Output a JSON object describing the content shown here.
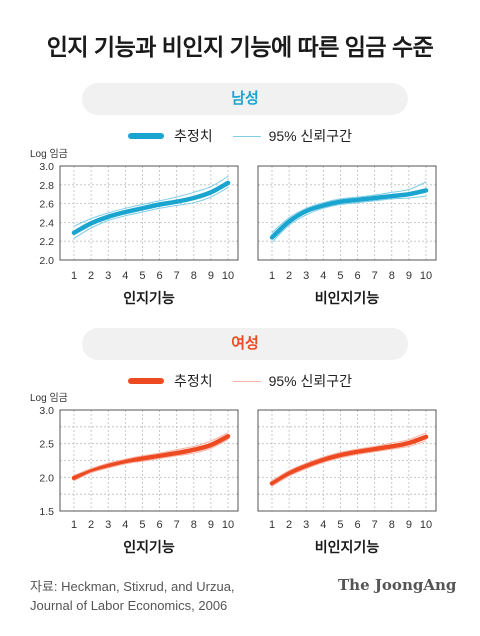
{
  "title": "인지 기능과 비인지 기능에 따른 임금 수준",
  "sections": {
    "male": {
      "label": "남성",
      "color": "#1aa5d0",
      "ci_color": "#7fcde6"
    },
    "female": {
      "label": "여성",
      "color": "#ee4a22",
      "ci_color": "#f6b3a4"
    }
  },
  "legend": {
    "estimate": "추정치",
    "ci": "95% 신뢰구간"
  },
  "y_axis_label": "Log 임금",
  "source": {
    "line1": "자료: Heckman, Stixrud, and Urzua,",
    "line2": "Journal of Labor Economics, 2006"
  },
  "logo": "The JoongAng",
  "chart_data": [
    {
      "type": "line",
      "group": "남성",
      "panel": "인지기능",
      "xlabel": "인지기능",
      "ylabel": "Log 임금",
      "x": [
        1,
        2,
        3,
        4,
        5,
        6,
        7,
        8,
        9,
        10
      ],
      "ylim": [
        2.0,
        3.0
      ],
      "yticks": [
        "2.0",
        "2.2",
        "2.4",
        "2.6",
        "2.8",
        "3.0"
      ],
      "series": [
        {
          "name": "추정치",
          "values": [
            2.29,
            2.39,
            2.46,
            2.51,
            2.55,
            2.59,
            2.62,
            2.66,
            2.72,
            2.82
          ]
        },
        {
          "name": "95% 신뢰구간",
          "role": "upper",
          "values": [
            2.36,
            2.44,
            2.5,
            2.55,
            2.59,
            2.63,
            2.67,
            2.72,
            2.78,
            2.89
          ]
        },
        {
          "name": "95% 신뢰구간",
          "role": "lower",
          "values": [
            2.23,
            2.34,
            2.42,
            2.47,
            2.51,
            2.55,
            2.58,
            2.61,
            2.67,
            2.77
          ]
        }
      ],
      "grid": true
    },
    {
      "type": "line",
      "group": "남성",
      "panel": "비인지기능",
      "xlabel": "비인지기능",
      "ylabel": "Log 임금",
      "x": [
        1,
        2,
        3,
        4,
        5,
        6,
        7,
        8,
        9,
        10
      ],
      "ylim": [
        2.0,
        3.0
      ],
      "series": [
        {
          "name": "추정치",
          "values": [
            2.24,
            2.41,
            2.52,
            2.58,
            2.62,
            2.64,
            2.66,
            2.68,
            2.7,
            2.74
          ]
        },
        {
          "name": "95% 신뢰구간",
          "role": "upper",
          "values": [
            2.29,
            2.45,
            2.55,
            2.61,
            2.65,
            2.67,
            2.69,
            2.72,
            2.75,
            2.83
          ]
        },
        {
          "name": "95% 신뢰구간",
          "role": "lower",
          "values": [
            2.19,
            2.37,
            2.48,
            2.55,
            2.59,
            2.61,
            2.63,
            2.65,
            2.66,
            2.68
          ]
        }
      ],
      "grid": true
    },
    {
      "type": "line",
      "group": "여성",
      "panel": "인지기능",
      "xlabel": "인지기능",
      "ylabel": "Log 임금",
      "x": [
        1,
        2,
        3,
        4,
        5,
        6,
        7,
        8,
        9,
        10
      ],
      "ylim": [
        1.5,
        3.0
      ],
      "yticks": [
        "1.5",
        "2.0",
        "2.5",
        "3.0"
      ],
      "series": [
        {
          "name": "추정치",
          "values": [
            1.99,
            2.1,
            2.17,
            2.23,
            2.28,
            2.32,
            2.36,
            2.41,
            2.48,
            2.61
          ]
        },
        {
          "name": "95% 신뢰구간",
          "role": "upper",
          "values": [
            2.03,
            2.13,
            2.21,
            2.27,
            2.32,
            2.36,
            2.41,
            2.46,
            2.54,
            2.66
          ]
        },
        {
          "name": "95% 신뢰구간",
          "role": "lower",
          "values": [
            1.95,
            2.07,
            2.14,
            2.2,
            2.24,
            2.28,
            2.32,
            2.36,
            2.43,
            2.56
          ]
        }
      ],
      "grid": true
    },
    {
      "type": "line",
      "group": "여성",
      "panel": "비인지기능",
      "xlabel": "비인지기능",
      "ylabel": "Log 임금",
      "x": [
        1,
        2,
        3,
        4,
        5,
        6,
        7,
        8,
        9,
        10
      ],
      "ylim": [
        1.5,
        3.0
      ],
      "series": [
        {
          "name": "추정치",
          "values": [
            1.91,
            2.06,
            2.17,
            2.26,
            2.33,
            2.38,
            2.42,
            2.46,
            2.51,
            2.6
          ]
        },
        {
          "name": "95% 신뢰구간",
          "role": "upper",
          "values": [
            1.95,
            2.1,
            2.21,
            2.3,
            2.37,
            2.42,
            2.46,
            2.51,
            2.56,
            2.66
          ]
        },
        {
          "name": "95% 신뢰구간",
          "role": "lower",
          "values": [
            1.87,
            2.02,
            2.13,
            2.22,
            2.29,
            2.34,
            2.38,
            2.42,
            2.46,
            2.54
          ]
        }
      ],
      "grid": true
    }
  ]
}
